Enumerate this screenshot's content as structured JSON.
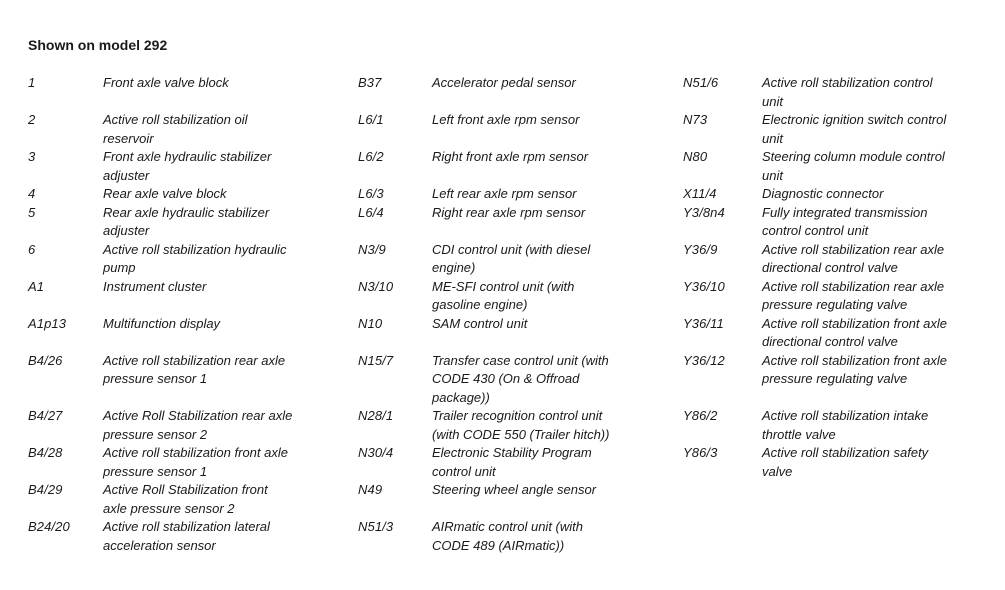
{
  "page": {
    "title": "Shown on model 292"
  },
  "legend": {
    "rows": [
      {
        "cells": [
          {
            "code": "1",
            "desc": "Front axle valve block"
          },
          {
            "code": "B37",
            "desc": "Accelerator pedal sensor"
          },
          {
            "code": "N51/6",
            "desc": "Active roll stabilization control\nunit"
          }
        ]
      },
      {
        "cells": [
          {
            "code": "2",
            "desc": "Active roll stabilization oil\nreservoir"
          },
          {
            "code": "L6/1",
            "desc": "Left front axle rpm sensor"
          },
          {
            "code": "N73",
            "desc": "Electronic ignition switch control\nunit"
          }
        ]
      },
      {
        "cells": [
          {
            "code": "3",
            "desc": "Front axle hydraulic stabilizer\nadjuster"
          },
          {
            "code": "L6/2",
            "desc": "Right front axle rpm sensor"
          },
          {
            "code": "N80",
            "desc": "Steering column module control\nunit"
          }
        ]
      },
      {
        "cells": [
          {
            "code": "4",
            "desc": "Rear axle valve block"
          },
          {
            "code": "L6/3",
            "desc": "Left rear axle rpm sensor"
          },
          {
            "code": "X11/4",
            "desc": "Diagnostic connector"
          }
        ]
      },
      {
        "cells": [
          {
            "code": "5",
            "desc": "Rear axle hydraulic stabilizer\nadjuster"
          },
          {
            "code": "L6/4",
            "desc": "Right rear axle rpm sensor"
          },
          {
            "code": "Y3/8n4",
            "desc": "Fully integrated transmission\ncontrol control unit"
          }
        ]
      },
      {
        "cells": [
          {
            "code": "6",
            "desc": "Active roll stabilization hydraulic\npump"
          },
          {
            "code": "N3/9",
            "desc": "CDI control unit (with diesel\nengine)"
          },
          {
            "code": "Y36/9",
            "desc": "Active roll stabilization rear axle\ndirectional control valve"
          }
        ]
      },
      {
        "cells": [
          {
            "code": "A1",
            "desc": "Instrument cluster"
          },
          {
            "code": "N3/10",
            "desc": "ME-SFI control unit (with\ngasoline engine)"
          },
          {
            "code": "Y36/10",
            "desc": "Active roll stabilization rear axle\npressure regulating valve"
          }
        ]
      },
      {
        "cells": [
          {
            "code": "A1p13",
            "desc": "Multifunction display"
          },
          {
            "code": "N10",
            "desc": "SAM control unit"
          },
          {
            "code": "Y36/11",
            "desc": "Active roll stabilization front axle\ndirectional control valve"
          }
        ]
      },
      {
        "cells": [
          {
            "code": "B4/26",
            "desc": "Active roll stabilization rear axle\npressure sensor 1"
          },
          {
            "code": "N15/7",
            "desc": "Transfer case control unit (with\nCODE 430 (On & Offroad\npackage))"
          },
          {
            "code": "Y36/12",
            "desc": "Active roll stabilization front axle\npressure regulating valve"
          }
        ]
      },
      {
        "cells": [
          {
            "code": "B4/27",
            "desc": "Active Roll Stabilization rear axle\npressure sensor 2"
          },
          {
            "code": "N28/1",
            "desc": "Trailer recognition control unit\n(with CODE 550 (Trailer hitch))"
          },
          {
            "code": "Y86/2",
            "desc": "Active roll stabilization intake\nthrottle valve"
          }
        ]
      },
      {
        "cells": [
          {
            "code": "B4/28",
            "desc": "Active roll stabilization front axle\npressure sensor 1"
          },
          {
            "code": "N30/4",
            "desc": "Electronic Stability Program\ncontrol unit"
          },
          {
            "code": "Y86/3",
            "desc": "Active roll stabilization safety\nvalve"
          }
        ]
      },
      {
        "cells": [
          {
            "code": "B4/29",
            "desc": "Active Roll Stabilization front\naxle pressure sensor 2"
          },
          {
            "code": "N49",
            "desc": "Steering wheel angle sensor"
          },
          {
            "code": "",
            "desc": ""
          }
        ]
      },
      {
        "cells": [
          {
            "code": "B24/20",
            "desc": "Active roll stabilization lateral\nacceleration sensor"
          },
          {
            "code": "N51/3",
            "desc": "AIRmatic control unit (with\nCODE 489 (AIRmatic))"
          },
          {
            "code": "",
            "desc": ""
          }
        ]
      }
    ]
  }
}
